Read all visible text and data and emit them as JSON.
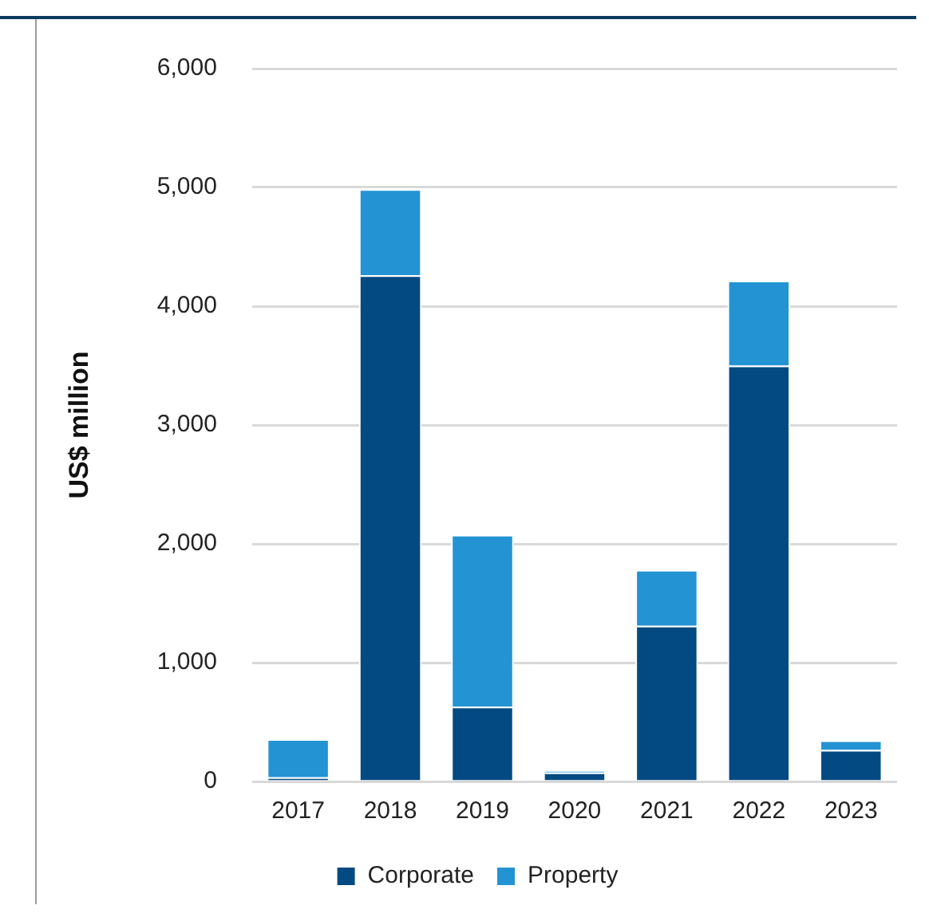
{
  "chart_data": {
    "type": "bar",
    "ylabel": "US$ million",
    "categories": [
      "2017",
      "2018",
      "2019",
      "2020",
      "2021",
      "2022",
      "2023"
    ],
    "stacked": true,
    "series": [
      {
        "name": "Corporate",
        "color": "#034a82",
        "values": [
          35,
          4260,
          630,
          75,
          1310,
          3500,
          265
        ]
      },
      {
        "name": "Property",
        "color": "#2393d3",
        "values": [
          320,
          725,
          1445,
          15,
          470,
          715,
          80
        ]
      }
    ],
    "ylim": [
      0,
      6000
    ],
    "yticks": [
      {
        "value": 0,
        "label": "0"
      },
      {
        "value": 1000,
        "label": "1,000"
      },
      {
        "value": 2000,
        "label": "2,000"
      },
      {
        "value": 3000,
        "label": "3,000"
      },
      {
        "value": 4000,
        "label": "4,000"
      },
      {
        "value": 5000,
        "label": "5,000"
      },
      {
        "value": 6000,
        "label": "6,000"
      }
    ],
    "grid": "y",
    "legend": "bottom"
  }
}
